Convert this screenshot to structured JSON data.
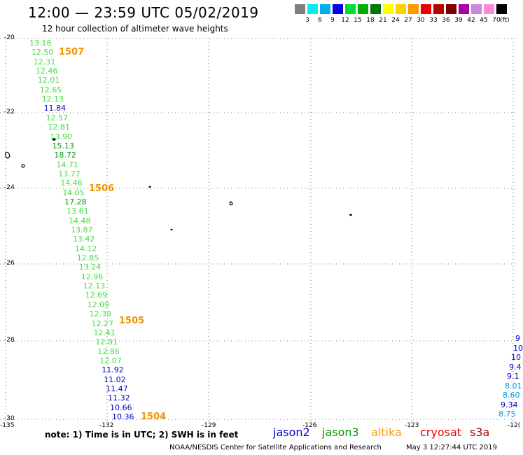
{
  "title": "12:00 — 23:59 UTC 05/02/2019",
  "subtitle": "12 hour collection of altimeter wave heights",
  "colorbar": {
    "colors": [
      "#7f7f7f",
      "#00eeee",
      "#00b0ee",
      "#0000ee",
      "#00dd33",
      "#00b000",
      "#007700",
      "#ffff00",
      "#ffd000",
      "#ff9900",
      "#ee0000",
      "#bb0000",
      "#800000",
      "#aa00aa",
      "#cc88dd",
      "#ff88dd",
      "#000000"
    ],
    "labels": [
      "3",
      "6",
      "9",
      "12",
      "15",
      "18",
      "21",
      "24",
      "27",
      "30",
      "33",
      "36",
      "39",
      "42",
      "45",
      "70"
    ],
    "unit": "(ft)"
  },
  "axes": {
    "lat_labels": [
      "-20",
      "-22",
      "-24",
      "-26",
      "-28",
      "-30"
    ],
    "lon_labels": [
      "-135",
      "-132",
      "-129",
      "-126",
      "-123",
      "-12("
    ]
  },
  "passes": [
    "1507",
    "1506",
    "1505",
    "1504"
  ],
  "track_main": [
    {
      "v": "13.18",
      "c": "#44dd44"
    },
    {
      "v": "12.50",
      "c": "#44dd44"
    },
    {
      "v": "12.31",
      "c": "#44dd44"
    },
    {
      "v": "12.46",
      "c": "#44dd44"
    },
    {
      "v": "12.01",
      "c": "#44dd44"
    },
    {
      "v": "12.65",
      "c": "#44dd44"
    },
    {
      "v": "12.13",
      "c": "#44dd44"
    },
    {
      "v": "11.84",
      "c": "#0000cc"
    },
    {
      "v": "12.57",
      "c": "#44dd44"
    },
    {
      "v": "12.81",
      "c": "#44dd44"
    },
    {
      "v": "13.90",
      "c": "#44dd44"
    },
    {
      "v": "15.13",
      "c": "#009900"
    },
    {
      "v": "18.72",
      "c": "#009900"
    },
    {
      "v": "14.71",
      "c": "#44dd44"
    },
    {
      "v": "13.77",
      "c": "#44dd44"
    },
    {
      "v": "14.46",
      "c": "#44dd44"
    },
    {
      "v": "14.05",
      "c": "#44dd44"
    },
    {
      "v": "17.28",
      "c": "#009900"
    },
    {
      "v": "13.61",
      "c": "#44dd44"
    },
    {
      "v": "14.48",
      "c": "#44dd44"
    },
    {
      "v": "13.87",
      "c": "#44dd44"
    },
    {
      "v": "13.42",
      "c": "#44dd44"
    },
    {
      "v": "14.12",
      "c": "#44dd44"
    },
    {
      "v": "12.85",
      "c": "#44dd44"
    },
    {
      "v": "13.24",
      "c": "#44dd44"
    },
    {
      "v": "12.96",
      "c": "#44dd44"
    },
    {
      "v": "12.13",
      "c": "#44dd44"
    },
    {
      "v": "12.69",
      "c": "#44dd44"
    },
    {
      "v": "12.09",
      "c": "#44dd44"
    },
    {
      "v": "12.39",
      "c": "#44dd44"
    },
    {
      "v": "12.27",
      "c": "#44dd44"
    },
    {
      "v": "12.41",
      "c": "#44dd44"
    },
    {
      "v": "12.81",
      "c": "#44dd44"
    },
    {
      "v": "12.86",
      "c": "#44dd44"
    },
    {
      "v": "12.07",
      "c": "#44dd44"
    },
    {
      "v": "11.92",
      "c": "#0000cc"
    },
    {
      "v": "11.02",
      "c": "#0000cc"
    },
    {
      "v": "11.47",
      "c": "#0000cc"
    },
    {
      "v": "11.32",
      "c": "#0000cc"
    },
    {
      "v": "10.66",
      "c": "#0000cc"
    },
    {
      "v": "10.36",
      "c": "#0000cc"
    }
  ],
  "track_right": [
    {
      "v": "9",
      "c": "#0000cc"
    },
    {
      "v": "10",
      "c": "#0000cc"
    },
    {
      "v": "10",
      "c": "#0000cc"
    },
    {
      "v": "9.4",
      "c": "#0000cc"
    },
    {
      "v": "9.1",
      "c": "#0000cc"
    },
    {
      "v": "8.01",
      "c": "#0099ee"
    },
    {
      "v": "8.60",
      "c": "#0099ee"
    },
    {
      "v": "9.34",
      "c": "#0000cc"
    },
    {
      "v": "8.75",
      "c": "#0099ee"
    }
  ],
  "footer": {
    "note": "note: 1) Time is in UTC; 2) SWH is in feet",
    "satellites": [
      {
        "name": "jason2",
        "color": "#0000cc"
      },
      {
        "name": "jason3",
        "color": "#009900"
      },
      {
        "name": "altika",
        "color": "#ff9900"
      },
      {
        "name": "cryosat",
        "color": "#ee0000"
      },
      {
        "name": "s3a",
        "color": "#aa0000"
      }
    ],
    "credit": "NOAA/NESDIS Center for Satellite Applications and Research",
    "timestamp": "May  3 12:27:44 UTC 2019"
  }
}
